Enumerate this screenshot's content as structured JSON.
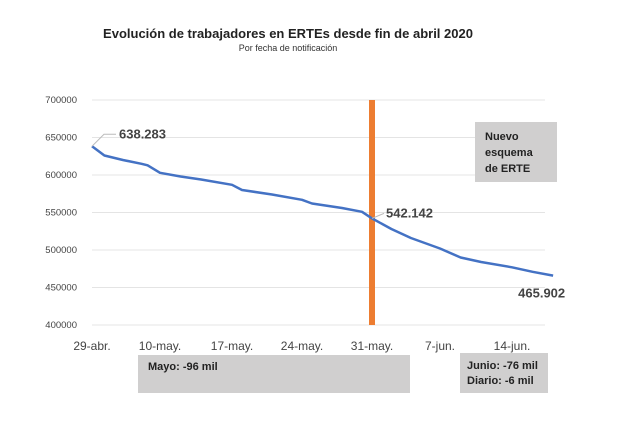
{
  "chart_data": {
    "type": "line",
    "title": "Evolución de trabajadores en ERTEs desde fin de abril 2020",
    "subtitle": "Por fecha de notificación",
    "xlabel": "",
    "ylabel": "",
    "ylim": [
      400000,
      700000
    ],
    "yticks": [
      "700000",
      "650000",
      "600000",
      "550000",
      "500000",
      "450000",
      "400000"
    ],
    "xticks": [
      "29-abr.",
      "10-may.",
      "17-may.",
      "24-may.",
      "31-may.",
      "7-jun.",
      "14-jun."
    ],
    "grid": true,
    "line_color": "#4472c4",
    "marker_line_color": "#ed7d31",
    "marker_line_at": "31-may.",
    "series": [
      {
        "x": [
          "29-abr",
          "1-may",
          "4-may",
          "7-may",
          "8-may",
          "10-may",
          "12-may",
          "14-may",
          "17-may",
          "18-may",
          "21-may",
          "24-may",
          "25-may",
          "28-may",
          "30-may",
          "31-may",
          "2-jun",
          "4-jun",
          "7-jun",
          "9-jun",
          "11-jun",
          "14-jun",
          "16-jun",
          "18-jun"
        ],
        "values": [
          638283,
          626000,
          620000,
          615000,
          613000,
          603000,
          598000,
          594000,
          587000,
          580000,
          574000,
          567000,
          562000,
          556000,
          551000,
          542142,
          528000,
          516000,
          502000,
          490000,
          484000,
          477000,
          471000,
          465902
        ]
      }
    ],
    "data_labels": [
      "638.283",
      "542.142",
      "465.902"
    ],
    "annotations": {
      "nuevo": [
        "Nuevo",
        "esquema",
        "de ERTE"
      ],
      "mayo": "Mayo: -96 mil",
      "junio": [
        "Junio: -76 mil",
        "Diario: -6 mil"
      ]
    }
  }
}
